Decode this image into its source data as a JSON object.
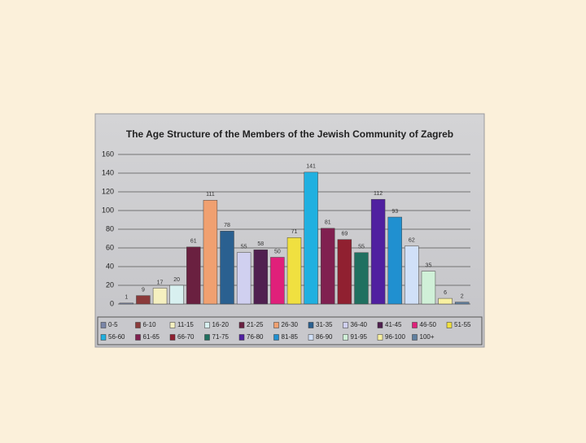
{
  "chart_data": {
    "type": "bar",
    "title": "The Age Structure of the Members of the Jewish Community of Zagreb",
    "categories": [
      "0-5",
      "6-10",
      "11-15",
      "16-20",
      "21-25",
      "26-30",
      "31-35",
      "36-40",
      "41-45",
      "46-50",
      "51-55",
      "56-60",
      "61-65",
      "66-70",
      "71-75",
      "76-80",
      "81-85",
      "86-90",
      "91-95",
      "96-100",
      "100+"
    ],
    "values": [
      1,
      9,
      17,
      20,
      61,
      111,
      78,
      55,
      58,
      50,
      71,
      141,
      81,
      69,
      55,
      112,
      93,
      62,
      35,
      6,
      2
    ],
    "colors": [
      "#7a86a8",
      "#8b3a3a",
      "#f5f0c0",
      "#d8f0f0",
      "#6a2040",
      "#f0a070",
      "#2a6090",
      "#d0d0f0",
      "#502050",
      "#e0207a",
      "#f0e040",
      "#20b0e0",
      "#802050",
      "#902030",
      "#207060",
      "#5020a0",
      "#2090d0",
      "#d0e0f8",
      "#d0f0d8",
      "#f8f0a0",
      "#6080a0"
    ],
    "ylim": [
      0,
      160
    ],
    "yticks": [
      0,
      20,
      40,
      60,
      80,
      100,
      120,
      140,
      160
    ],
    "grid": true,
    "legend": "bottom"
  }
}
